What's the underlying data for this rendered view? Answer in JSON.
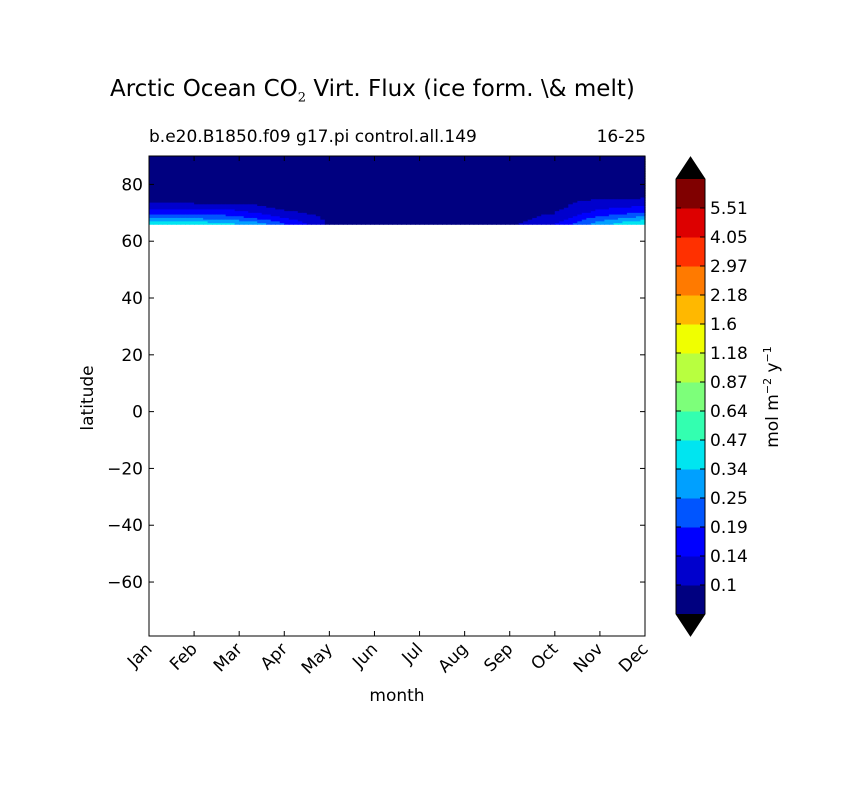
{
  "chart_data": {
    "type": "contour",
    "title": "Arctic Ocean CO",
    "title_sub": "2",
    "title_rest": " Virt. Flux (ice form. \\& melt)",
    "subtitle_left": "b.e20.B1850.f09 g17.pi control.all.149",
    "subtitle_right": "16-25",
    "xlabel": "month",
    "ylabel": "latitude",
    "x_ticks": [
      "Jan",
      "Feb",
      "Mar",
      "Apr",
      "May",
      "Jun",
      "Jul",
      "Aug",
      "Sep",
      "Oct",
      "Nov",
      "Dec"
    ],
    "y_ticks": [
      80,
      60,
      40,
      20,
      0,
      -20,
      -40,
      -60
    ],
    "y_tick_labels": [
      "80",
      "60",
      "40",
      "20",
      "0",
      "−20",
      "−40",
      "−60"
    ],
    "ylim": [
      -79,
      90
    ],
    "data_lat_min": 66,
    "colorbar": {
      "label_main": "mol m",
      "label_exp1": "−2",
      "label_mid": " y",
      "label_exp2": "−1",
      "levels": [
        "0.1",
        "0.14",
        "0.19",
        "0.25",
        "0.34",
        "0.47",
        "0.64",
        "0.87",
        "1.18",
        "1.6",
        "2.18",
        "2.97",
        "4.05",
        "5.51"
      ],
      "colors": [
        "#000080",
        "#0000cd",
        "#0000ff",
        "#0055ff",
        "#00a0ff",
        "#00e5f0",
        "#33ffb0",
        "#7dff7a",
        "#b8ff3f",
        "#f0ff00",
        "#ffb800",
        "#ff7a00",
        "#ff3000",
        "#dd0000",
        "#800000"
      ],
      "extend": "both",
      "extend_color": "#000000"
    },
    "field": {
      "months": [
        1,
        2,
        3,
        4,
        5,
        6,
        7,
        8,
        9,
        10,
        11,
        12
      ],
      "latitudes": [
        66,
        68,
        70,
        72,
        74,
        76,
        78,
        80,
        82,
        84,
        86,
        88,
        90
      ],
      "values": [
        [
          0.5,
          0.26,
          0.18,
          0.13,
          0.09,
          0.09,
          0.09,
          0.09,
          0.09,
          0.09,
          0.09,
          0.09,
          0.09
        ],
        [
          0.45,
          0.26,
          0.18,
          0.13,
          0.09,
          0.09,
          0.09,
          0.09,
          0.09,
          0.09,
          0.09,
          0.09,
          0.09
        ],
        [
          0.35,
          0.22,
          0.16,
          0.12,
          0.09,
          0.09,
          0.09,
          0.09,
          0.09,
          0.09,
          0.09,
          0.09,
          0.09
        ],
        [
          0.2,
          0.15,
          0.11,
          0.09,
          0.09,
          0.09,
          0.09,
          0.09,
          0.09,
          0.09,
          0.09,
          0.09,
          0.09
        ],
        [
          0.09,
          0.09,
          0.09,
          0.09,
          0.09,
          0.09,
          0.09,
          0.09,
          0.09,
          0.09,
          0.09,
          0.09,
          0.09
        ],
        [
          0.09,
          0.09,
          0.09,
          0.09,
          0.09,
          0.09,
          0.09,
          0.09,
          0.09,
          0.09,
          0.09,
          0.09,
          0.09
        ],
        [
          0.09,
          0.09,
          0.09,
          0.09,
          0.09,
          0.09,
          0.09,
          0.09,
          0.09,
          0.09,
          0.09,
          0.09,
          0.09
        ],
        [
          0.09,
          0.09,
          0.09,
          0.09,
          0.09,
          0.09,
          0.09,
          0.09,
          0.09,
          0.09,
          0.09,
          0.09,
          0.09
        ],
        [
          0.09,
          0.09,
          0.09,
          0.09,
          0.09,
          0.09,
          0.09,
          0.09,
          0.09,
          0.09,
          0.09,
          0.09,
          0.09
        ],
        [
          0.14,
          0.11,
          0.1,
          0.09,
          0.09,
          0.09,
          0.09,
          0.09,
          0.09,
          0.09,
          0.09,
          0.09,
          0.09
        ],
        [
          0.3,
          0.22,
          0.16,
          0.13,
          0.11,
          0.09,
          0.09,
          0.09,
          0.09,
          0.09,
          0.09,
          0.09,
          0.09
        ],
        [
          0.5,
          0.3,
          0.2,
          0.15,
          0.12,
          0.09,
          0.09,
          0.09,
          0.09,
          0.09,
          0.09,
          0.09,
          0.09
        ]
      ]
    }
  }
}
